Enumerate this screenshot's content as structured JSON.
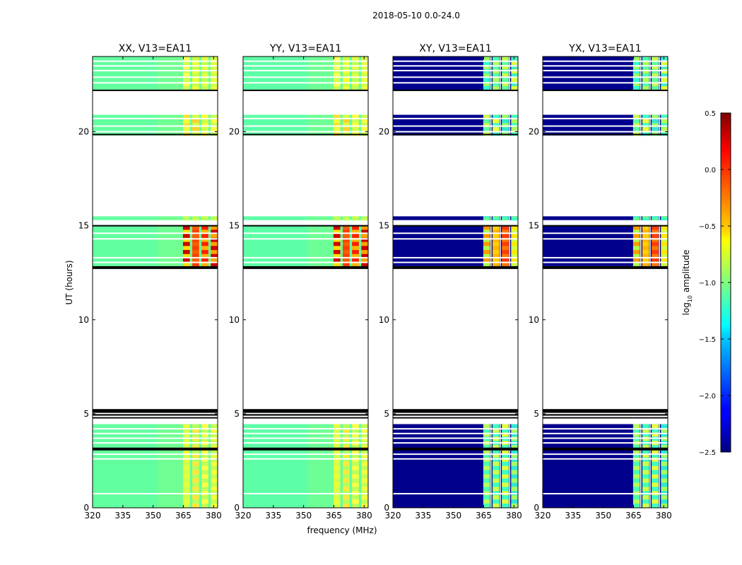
{
  "figure": {
    "suptitle": "2018-05-10 0.0-24.0"
  },
  "chart_data": {
    "type": "heatmap",
    "xlabel": "frequency (MHz)",
    "ylabel": "UT (hours)",
    "xlim": [
      320,
      382
    ],
    "ylim": [
      0,
      24
    ],
    "xticks": [
      320,
      335,
      350,
      365,
      380
    ],
    "yticks": [
      0,
      5,
      10,
      15,
      20
    ],
    "flagged_hours": [
      [
        5.05,
        5.25
      ],
      [
        4.9,
        4.98
      ],
      [
        4.75,
        4.82
      ],
      [
        3.05,
        3.2
      ],
      [
        12.7,
        12.85
      ]
    ],
    "data_blocks": [
      [
        0,
        4.45
      ],
      [
        12.85,
        15.0
      ],
      [
        15.3,
        15.5
      ],
      [
        19.8,
        20.9
      ],
      [
        22.2,
        24.0
      ]
    ],
    "panels": [
      {
        "title": "XX, V13=EA11",
        "kind": "auto"
      },
      {
        "title": "YY, V13=EA11",
        "kind": "auto"
      },
      {
        "title": "XY, V13=EA11",
        "kind": "cross"
      },
      {
        "title": "YX, V13=EA11",
        "kind": "cross"
      }
    ],
    "colorbar": {
      "label_main": "log",
      "label_sub": "10",
      "label_rest": " amplitude",
      "range": [
        -2.5,
        0.5
      ],
      "ticks": [
        "0.5",
        "0.0",
        "−0.5",
        "−1.0",
        "−1.5",
        "−2.0",
        "−2.5"
      ],
      "tick_values": [
        0.5,
        0.0,
        -0.5,
        -1.0,
        -1.5,
        -2.0,
        -2.5
      ],
      "colormap": "jet"
    }
  }
}
